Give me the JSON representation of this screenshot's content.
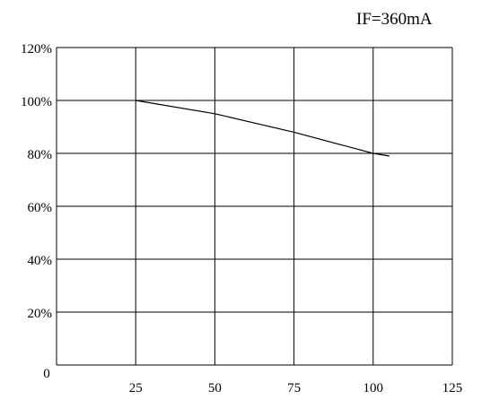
{
  "chart_data": {
    "type": "line",
    "annotation": "IF=360mA",
    "x_ticks": [
      "25",
      "50",
      "75",
      "100",
      "125"
    ],
    "y_ticks": [
      "20%",
      "40%",
      "60%",
      "80%",
      "100%",
      "120%"
    ],
    "origin_label": "0",
    "xlim": [
      0,
      125
    ],
    "ylim": [
      0,
      120
    ],
    "grid": true,
    "series": [
      {
        "x": [
          25,
          50,
          75,
          100,
          105
        ],
        "y": [
          100,
          95,
          88,
          80,
          79
        ]
      }
    ]
  }
}
